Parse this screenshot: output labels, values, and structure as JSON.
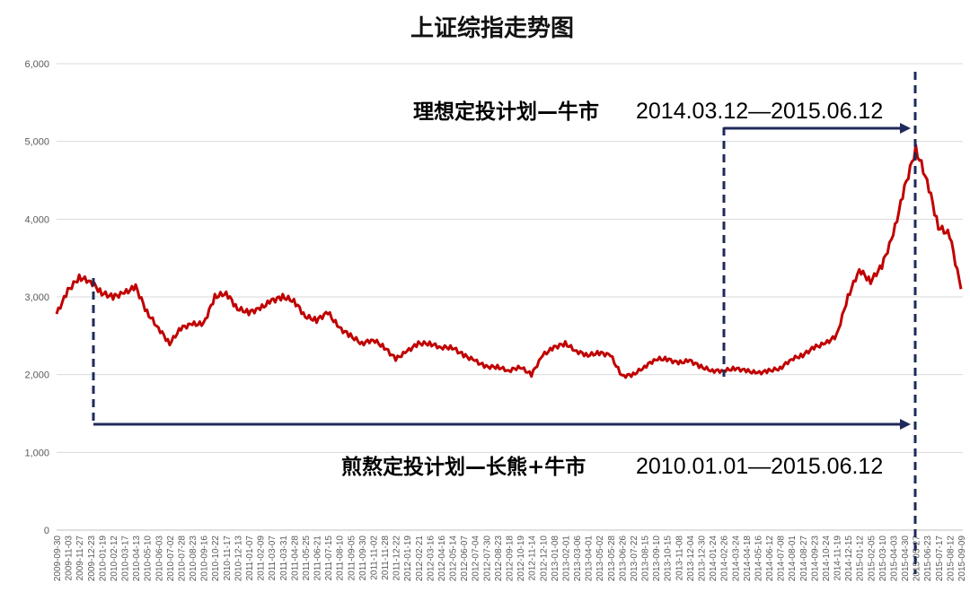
{
  "chart_data": {
    "type": "line",
    "title": "上证综指走势图",
    "xlabel": "",
    "ylabel": "",
    "ylim": [
      0,
      6000
    ],
    "yticks": [
      "0",
      "1,000",
      "2,000",
      "3,000",
      "4,000",
      "5,000",
      "6,000"
    ],
    "grid": "horizontal",
    "line_color": "#c00000",
    "annotation_color": "#1f2a5a",
    "categories": [
      "2009-09-30",
      "2009-11-03",
      "2009-11-27",
      "2009-12-23",
      "2010-01-19",
      "2010-02-12",
      "2010-03-17",
      "2010-04-13",
      "2010-05-10",
      "2010-06-03",
      "2010-07-02",
      "2010-07-28",
      "2010-08-23",
      "2010-09-16",
      "2010-10-22",
      "2010-11-17",
      "2010-12-13",
      "2011-01-07",
      "2011-02-09",
      "2011-03-07",
      "2011-03-31",
      "2011-04-28",
      "2011-05-25",
      "2011-06-21",
      "2011-07-15",
      "2011-08-10",
      "2011-09-05",
      "2011-09-30",
      "2011-11-02",
      "2011-11-28",
      "2011-12-22",
      "2012-01-19",
      "2012-02-21",
      "2012-03-16",
      "2012-04-16",
      "2012-05-14",
      "2012-06-07",
      "2012-07-04",
      "2012-07-30",
      "2012-08-23",
      "2012-09-18",
      "2012-10-19",
      "2012-11-14",
      "2012-12-10",
      "2013-01-08",
      "2013-02-01",
      "2013-03-06",
      "2013-04-01",
      "2013-05-02",
      "2013-05-28",
      "2013-06-26",
      "2013-07-22",
      "2013-08-15",
      "2013-09-10",
      "2013-10-15",
      "2013-11-08",
      "2013-12-04",
      "2013-12-30",
      "2014-01-24",
      "2014-02-26",
      "2014-03-24",
      "2014-04-18",
      "2014-05-16",
      "2014-06-12",
      "2014-07-08",
      "2014-08-01",
      "2014-08-27",
      "2014-09-23",
      "2014-10-24",
      "2014-11-19",
      "2014-12-15",
      "2015-01-12",
      "2015-02-05",
      "2015-03-10",
      "2015-04-03",
      "2015-04-30",
      "2015-05-27",
      "2015-06-23",
      "2015-07-17",
      "2015-08-12",
      "2015-09-09"
    ],
    "values": [
      2780,
      3080,
      3250,
      3200,
      3050,
      3000,
      3050,
      3130,
      2800,
      2600,
      2400,
      2600,
      2650,
      2650,
      3000,
      3050,
      2850,
      2800,
      2850,
      2950,
      3000,
      2950,
      2750,
      2700,
      2800,
      2600,
      2500,
      2400,
      2450,
      2350,
      2200,
      2300,
      2400,
      2400,
      2350,
      2350,
      2250,
      2180,
      2100,
      2100,
      2050,
      2100,
      2000,
      2250,
      2350,
      2400,
      2300,
      2250,
      2280,
      2250,
      1980,
      2000,
      2100,
      2200,
      2200,
      2150,
      2180,
      2100,
      2050,
      2050,
      2080,
      2050,
      2020,
      2050,
      2080,
      2200,
      2250,
      2350,
      2400,
      2500,
      3000,
      3350,
      3200,
      3400,
      3800,
      4400,
      4900,
      4500,
      3900,
      3800,
      3100
    ],
    "annotations": [
      {
        "bold": "理想定投计划—牛市",
        "dates": "2014.03.12—2015.06.12"
      },
      {
        "bold": "煎熬定投计划—长熊+牛市",
        "dates": "2010.01.01—2015.06.12"
      }
    ]
  }
}
